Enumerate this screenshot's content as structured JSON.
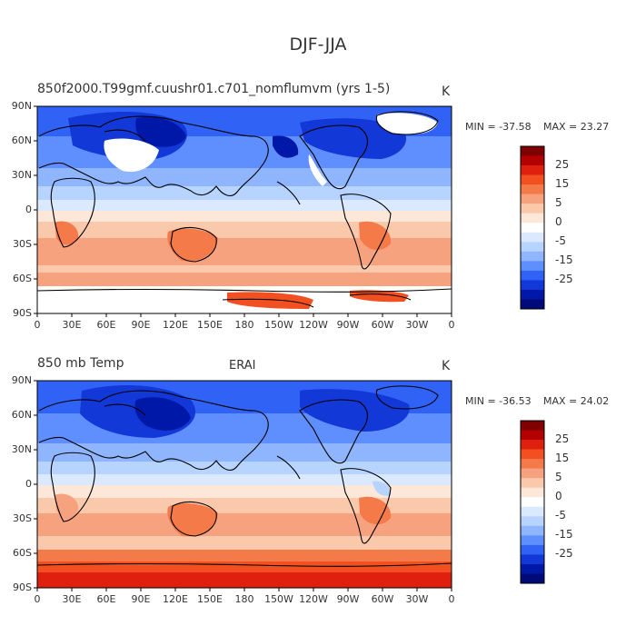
{
  "figure": {
    "title": "DJF-JJA"
  },
  "panels": [
    {
      "id": "model",
      "left_title": "850f2000.T99gmf.cuushr01.c701_nomflumvm (yrs 1-5)",
      "center_title": "",
      "units": "K",
      "min_label": "MIN = -37.58",
      "max_label": "MAX =  23.27"
    },
    {
      "id": "erai",
      "left_title": "850 mb Temp",
      "center_title": "ERAI",
      "units": "K",
      "min_label": "MIN = -36.53",
      "max_label": "MAX =  24.02"
    }
  ],
  "axes": {
    "lat_ticks": [
      "90N",
      "60N",
      "30N",
      "0",
      "30S",
      "60S",
      "90S"
    ],
    "lon_ticks": [
      "0",
      "30E",
      "60E",
      "90E",
      "120E",
      "150E",
      "180",
      "150W",
      "120W",
      "90W",
      "60W",
      "30W",
      "0"
    ]
  },
  "colorbar": {
    "labels": [
      "25",
      "15",
      "5",
      "0",
      "-5",
      "-15",
      "-25"
    ],
    "colors": [
      "#7f0000",
      "#b30000",
      "#e0200f",
      "#f25020",
      "#f57a4a",
      "#f7a27e",
      "#fac8aa",
      "#fde7d8",
      "#ffffff",
      "#dbe9ff",
      "#b7d3ff",
      "#8fb5ff",
      "#5f8fff",
      "#2f62f5",
      "#1238d8",
      "#0018a8",
      "#000a78"
    ]
  },
  "chart_data": {
    "type": "heatmap",
    "title": "DJF-JJA",
    "variable": "850 mb Temp",
    "units": "K",
    "xlim": [
      0,
      360
    ],
    "ylim": [
      -90,
      90
    ],
    "panels": [
      {
        "name": "850f2000.T99gmf.cuushr01.c701_nomflumvm (yrs 1-5)",
        "min": -37.58,
        "max": 23.27,
        "bands": [
          {
            "lat_range": [
              60,
              90
            ],
            "value": -25
          },
          {
            "lat_range": [
              30,
              60
            ],
            "value": -18
          },
          {
            "lat_range": [
              10,
              30
            ],
            "value": -8
          },
          {
            "lat_range": [
              -10,
              10
            ],
            "value": 0
          },
          {
            "lat_range": [
              -40,
              -10
            ],
            "value": 8
          },
          {
            "lat_range": [
              -70,
              -40
            ],
            "value": 5
          },
          {
            "lat_range": [
              -90,
              -70
            ],
            "value": null
          }
        ]
      },
      {
        "name": "ERAI",
        "min": -36.53,
        "max": 24.02,
        "bands": [
          {
            "lat_range": [
              60,
              90
            ],
            "value": -22
          },
          {
            "lat_range": [
              30,
              60
            ],
            "value": -18
          },
          {
            "lat_range": [
              10,
              30
            ],
            "value": -8
          },
          {
            "lat_range": [
              -10,
              10
            ],
            "value": 0
          },
          {
            "lat_range": [
              -40,
              -10
            ],
            "value": 8
          },
          {
            "lat_range": [
              -70,
              -40
            ],
            "value": 6
          },
          {
            "lat_range": [
              -90,
              -70
            ],
            "value": 22
          }
        ]
      }
    ]
  }
}
